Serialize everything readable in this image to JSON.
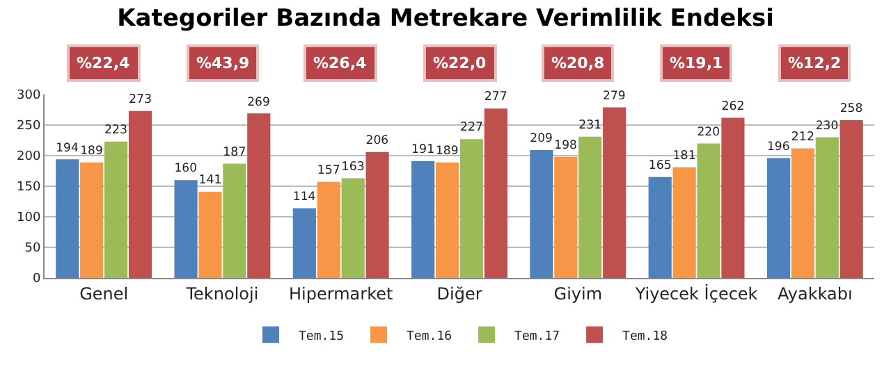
{
  "chart_data": {
    "type": "bar",
    "title": "Kategoriler Bazında Metrekare Verimlilik Endeksi",
    "categories": [
      "Genel",
      "Teknoloji",
      "Hipermarket",
      "Diğer",
      "Giyim",
      "Yiyecek İçecek",
      "Ayakkabı"
    ],
    "series": [
      {
        "name": "Tem.15",
        "color": "#4f81bd",
        "values": [
          194,
          160,
          114,
          191,
          209,
          165,
          196
        ]
      },
      {
        "name": "Tem.16",
        "color": "#f79646",
        "values": [
          189,
          141,
          157,
          189,
          198,
          181,
          212
        ]
      },
      {
        "name": "Tem.17",
        "color": "#9bbb59",
        "values": [
          223,
          187,
          163,
          227,
          231,
          220,
          230
        ]
      },
      {
        "name": "Tem.18",
        "color": "#c0504d",
        "values": [
          273,
          269,
          206,
          277,
          279,
          262,
          258
        ]
      }
    ],
    "annotations": [
      "%22,4",
      "%43,9",
      "%26,4",
      "%22,0",
      "%20,8",
      "%19,1",
      "%12,2"
    ],
    "ylim": [
      0,
      300
    ],
    "yticks": [
      0,
      50,
      100,
      150,
      200,
      250,
      300
    ],
    "grid": "y",
    "legend": "bottom",
    "data_labels": true
  }
}
